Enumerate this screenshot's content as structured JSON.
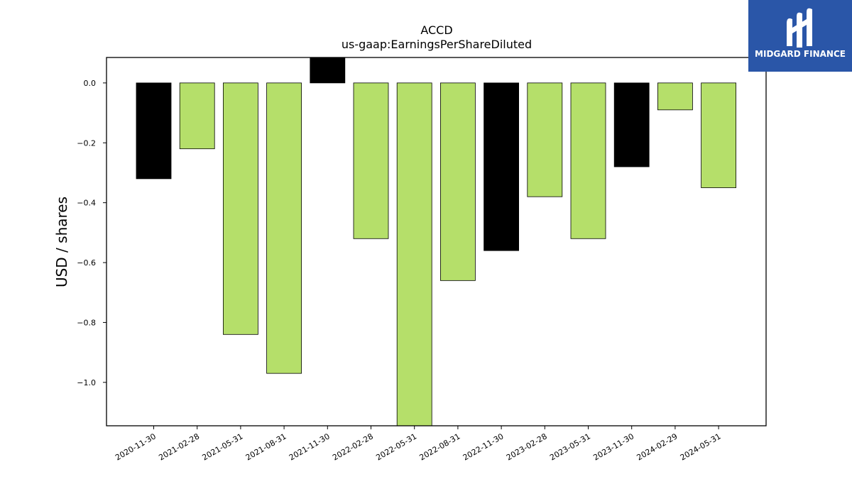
{
  "chart_data": {
    "type": "bar",
    "title": "ACCD",
    "subtitle": "us-gaap:EarningsPerShareDiluted",
    "xlabel": "",
    "ylabel": "USD / shares",
    "ylim": [
      -1.145,
      0.085
    ],
    "yticks": [
      0.0,
      -0.2,
      -0.4,
      -0.6,
      -0.8,
      -1.0
    ],
    "ytick_labels": [
      "0.0",
      "−0.2",
      "−0.4",
      "−0.6",
      "−0.8",
      "−1.0"
    ],
    "grid": false,
    "categories": [
      "2020-11-30",
      "2021-02-28",
      "2021-05-31",
      "2021-08-31",
      "2021-11-30",
      "2022-02-28",
      "2022-05-31",
      "2022-08-31",
      "2022-11-30",
      "2023-02-28",
      "2023-05-31",
      "2023-11-30",
      "2024-02-29",
      "2024-05-31"
    ],
    "values": [
      -0.32,
      -0.22,
      -0.84,
      -0.97,
      0.09,
      -0.52,
      -1.16,
      -0.66,
      -0.56,
      -0.38,
      -0.52,
      -0.28,
      -0.09,
      -0.35
    ],
    "bar_colors": [
      "#000000",
      "#b5df6a",
      "#b5df6a",
      "#b5df6a",
      "#000000",
      "#b5df6a",
      "#b5df6a",
      "#b5df6a",
      "#000000",
      "#b5df6a",
      "#b5df6a",
      "#000000",
      "#b5df6a",
      "#b5df6a"
    ]
  },
  "logo": {
    "text": "MIDGARD FINANCE",
    "icon": "midgard-m-logo-icon",
    "background": "#2a56a8"
  }
}
